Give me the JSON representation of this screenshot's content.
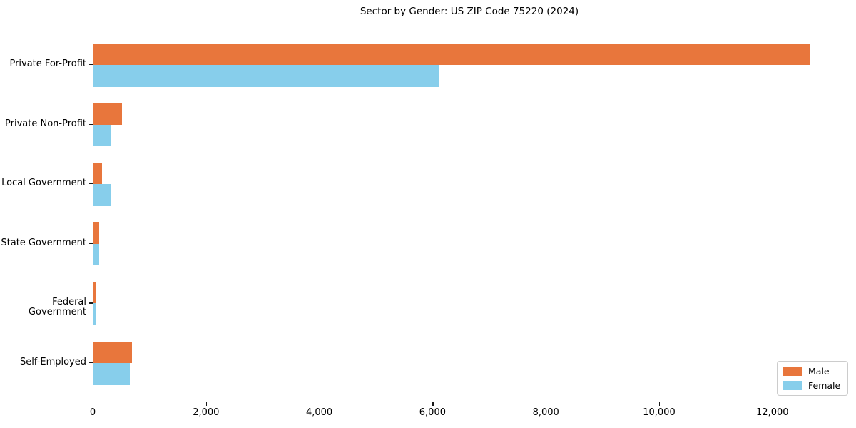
{
  "title": "Sector by Gender: US ZIP Code 75220 (2024)",
  "chart_data": {
    "type": "bar",
    "orientation": "horizontal",
    "title": "Sector by Gender: US ZIP Code 75220 (2024)",
    "categories": [
      "Private For-Profit",
      "Private Non-Profit",
      "Local Government",
      "State Government",
      "Federal Government",
      "Self-Employed"
    ],
    "series": [
      {
        "name": "Male",
        "color": "#e8763c",
        "values": [
          12650,
          500,
          150,
          105,
          55,
          680
        ]
      },
      {
        "name": "Female",
        "color": "#87ceeb",
        "values": [
          6100,
          310,
          305,
          95,
          40,
          640
        ]
      }
    ],
    "xlabel": "",
    "ylabel": "",
    "xlim": [
      0,
      13300
    ],
    "xticks": [
      0,
      2000,
      4000,
      6000,
      8000,
      10000,
      12000
    ],
    "xtick_labels": [
      "0",
      "2,000",
      "4,000",
      "6,000",
      "8,000",
      "10,000",
      "12,000"
    ],
    "grid": false,
    "legend_position": "lower right"
  },
  "legend": {
    "items": [
      {
        "label": "Male",
        "color": "#e8763c"
      },
      {
        "label": "Female",
        "color": "#87ceeb"
      }
    ]
  }
}
